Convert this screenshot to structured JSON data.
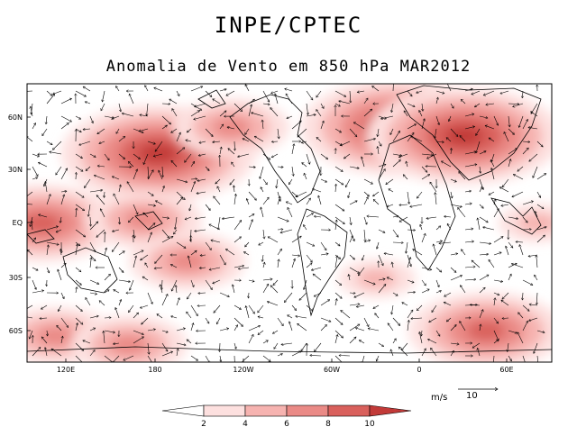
{
  "header": {
    "institution": "INPE/CPTEC",
    "subtitle": "Anomalia de Vento em 850 hPa MAR2012"
  },
  "map": {
    "lat_ticks": [
      "60N",
      "30N",
      "EQ",
      "30S",
      "60S"
    ],
    "lon_ticks": [
      "120E",
      "180",
      "120W",
      "60W",
      "0",
      "60E"
    ],
    "region": {
      "lon_min": 90,
      "lon_max": 450,
      "lat_min": -80,
      "lat_max": 80
    },
    "grid": false
  },
  "colorbar": {
    "levels": [
      "2",
      "4",
      "6",
      "8",
      "10"
    ],
    "colors": [
      "#ffffff",
      "#fde0df",
      "#f6b3b0",
      "#ea8a86",
      "#d9605c",
      "#c23a38",
      "#c23a38"
    ]
  },
  "vector_key": {
    "unit": "m/s",
    "reference": "10"
  },
  "chart_data": {
    "type": "heatmap",
    "title": "Anomalia de Vento em 850 hPa MAR2012",
    "variable": "wind anomaly magnitude (m/s) with vectors",
    "xlabel": "",
    "ylabel": "",
    "xlim": [
      90,
      450
    ],
    "ylim": [
      -80,
      80
    ],
    "levels": [
      2,
      4,
      6,
      8,
      10
    ],
    "anomaly_centers": [
      {
        "lon": 180,
        "lat": 40,
        "peak": 10
      },
      {
        "lon": 345,
        "lat": 55,
        "peak": 10
      },
      {
        "lon": 390,
        "lat": 50,
        "peak": 10
      },
      {
        "lon": 100,
        "lat": 0,
        "peak": 8
      },
      {
        "lon": 170,
        "lat": 2,
        "peak": 6
      },
      {
        "lon": 200,
        "lat": -22,
        "peak": 6
      },
      {
        "lon": 330,
        "lat": -32,
        "peak": 4
      },
      {
        "lon": 110,
        "lat": -65,
        "peak": 6
      },
      {
        "lon": 160,
        "lat": -70,
        "peak": 6
      },
      {
        "lon": 405,
        "lat": -62,
        "peak": 8
      },
      {
        "lon": 230,
        "lat": 55,
        "peak": 6
      },
      {
        "lon": 440,
        "lat": 0,
        "peak": 4
      }
    ]
  }
}
